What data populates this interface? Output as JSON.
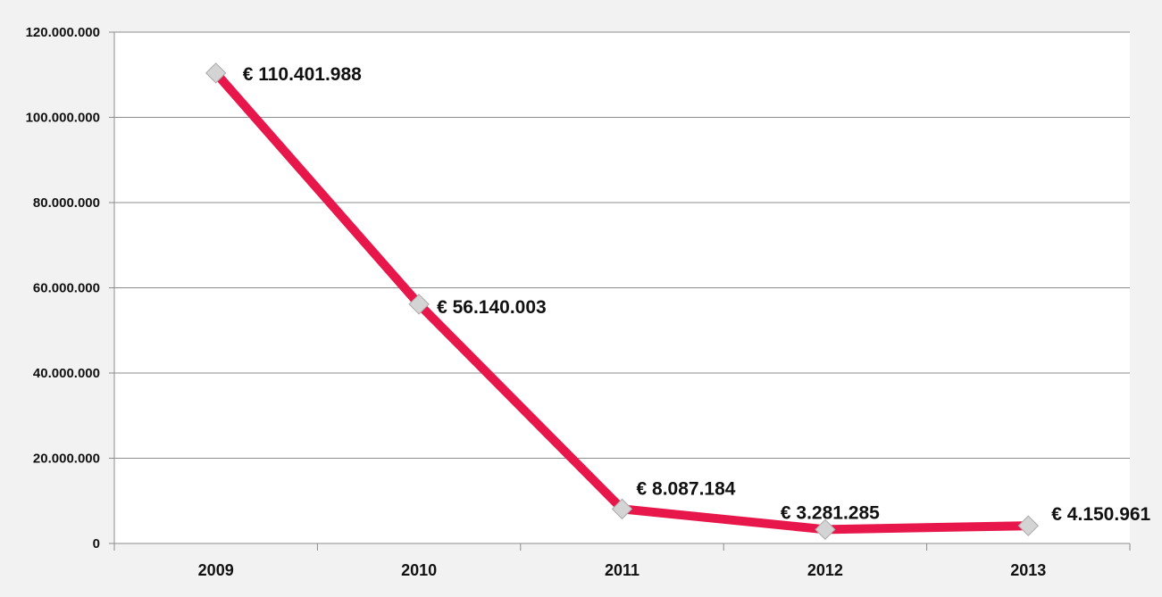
{
  "chart_data": {
    "type": "line",
    "title": "",
    "xlabel": "",
    "ylabel": "",
    "categories": [
      "2009",
      "2010",
      "2011",
      "2012",
      "2013"
    ],
    "series": [
      {
        "values": [
          110401988,
          56140003,
          8087184,
          3281285,
          4150961
        ],
        "labels": [
          "€ 110.401.988",
          "€ 56.140.003",
          "€ 8.087.184",
          "€ 3.281.285",
          "€ 4.150.961"
        ],
        "color": "#e8174b",
        "marker": "diamond",
        "marker_color": "#d4d4d4"
      }
    ],
    "ylim": [
      0,
      120000000
    ],
    "yticks": [
      {
        "value": 0,
        "label": "0"
      },
      {
        "value": 20000000,
        "label": "20.000.000"
      },
      {
        "value": 40000000,
        "label": "40.000.000"
      },
      {
        "value": 60000000,
        "label": "60.000.000"
      },
      {
        "value": 80000000,
        "label": "80.000.000"
      },
      {
        "value": 100000000,
        "label": "100.000.000"
      },
      {
        "value": 120000000,
        "label": "120.000.000"
      }
    ],
    "grid": true,
    "legend": "none",
    "colors": {
      "background": "#f2f2f2",
      "plot_background": "#ffffff",
      "gridline": "#8c8c8c",
      "axis": "#8c8c8c"
    }
  }
}
